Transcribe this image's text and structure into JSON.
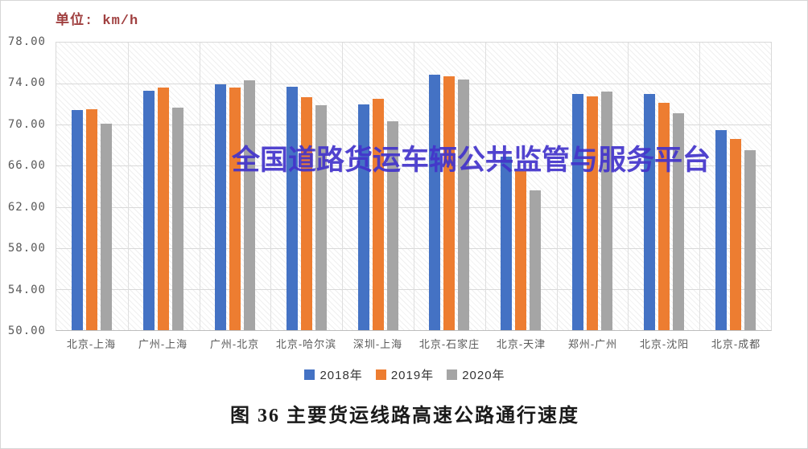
{
  "unit_label": "单位: km/h",
  "watermark_text": "全国道路货运车辆公共监管与服务平台",
  "caption": "图 36 主要货运线路高速公路通行速度",
  "colors": {
    "series_2018": "#4472C4",
    "series_2019": "#ED7D31",
    "series_2020": "#A5A5A5",
    "unit_label": "#a04040",
    "watermark": "#4334cb",
    "gridline": "#d9d9d9",
    "axis_text": "#595959"
  },
  "chart_data": {
    "type": "bar",
    "title": "图 36 主要货运线路高速公路通行速度",
    "unit": "km/h",
    "categories": [
      "北京-上海",
      "广州-上海",
      "广州-北京",
      "北京-哈尔滨",
      "深圳-上海",
      "北京-石家庄",
      "北京-天津",
      "郑州-广州",
      "北京-沈阳",
      "北京-成都"
    ],
    "series": [
      {
        "name": "2018年",
        "color": "#4472C4",
        "values": [
          71.4,
          73.3,
          73.9,
          73.7,
          72.0,
          74.9,
          66.9,
          73.0,
          73.0,
          69.5
        ]
      },
      {
        "name": "2019年",
        "color": "#ED7D31",
        "values": [
          71.5,
          73.6,
          73.6,
          72.7,
          72.5,
          74.7,
          65.5,
          72.8,
          72.1,
          68.6
        ]
      },
      {
        "name": "2020年",
        "color": "#A5A5A5",
        "values": [
          70.1,
          71.7,
          74.3,
          71.9,
          70.3,
          74.4,
          63.6,
          73.2,
          71.1,
          67.5
        ]
      }
    ],
    "ylim": [
      50.0,
      78.0
    ],
    "ytick_step": 4.0,
    "ytick_labels": [
      "78.00",
      "74.00",
      "70.00",
      "66.00",
      "62.00",
      "58.00",
      "54.00",
      "50.00"
    ],
    "grid": true,
    "legend_position": "bottom"
  }
}
